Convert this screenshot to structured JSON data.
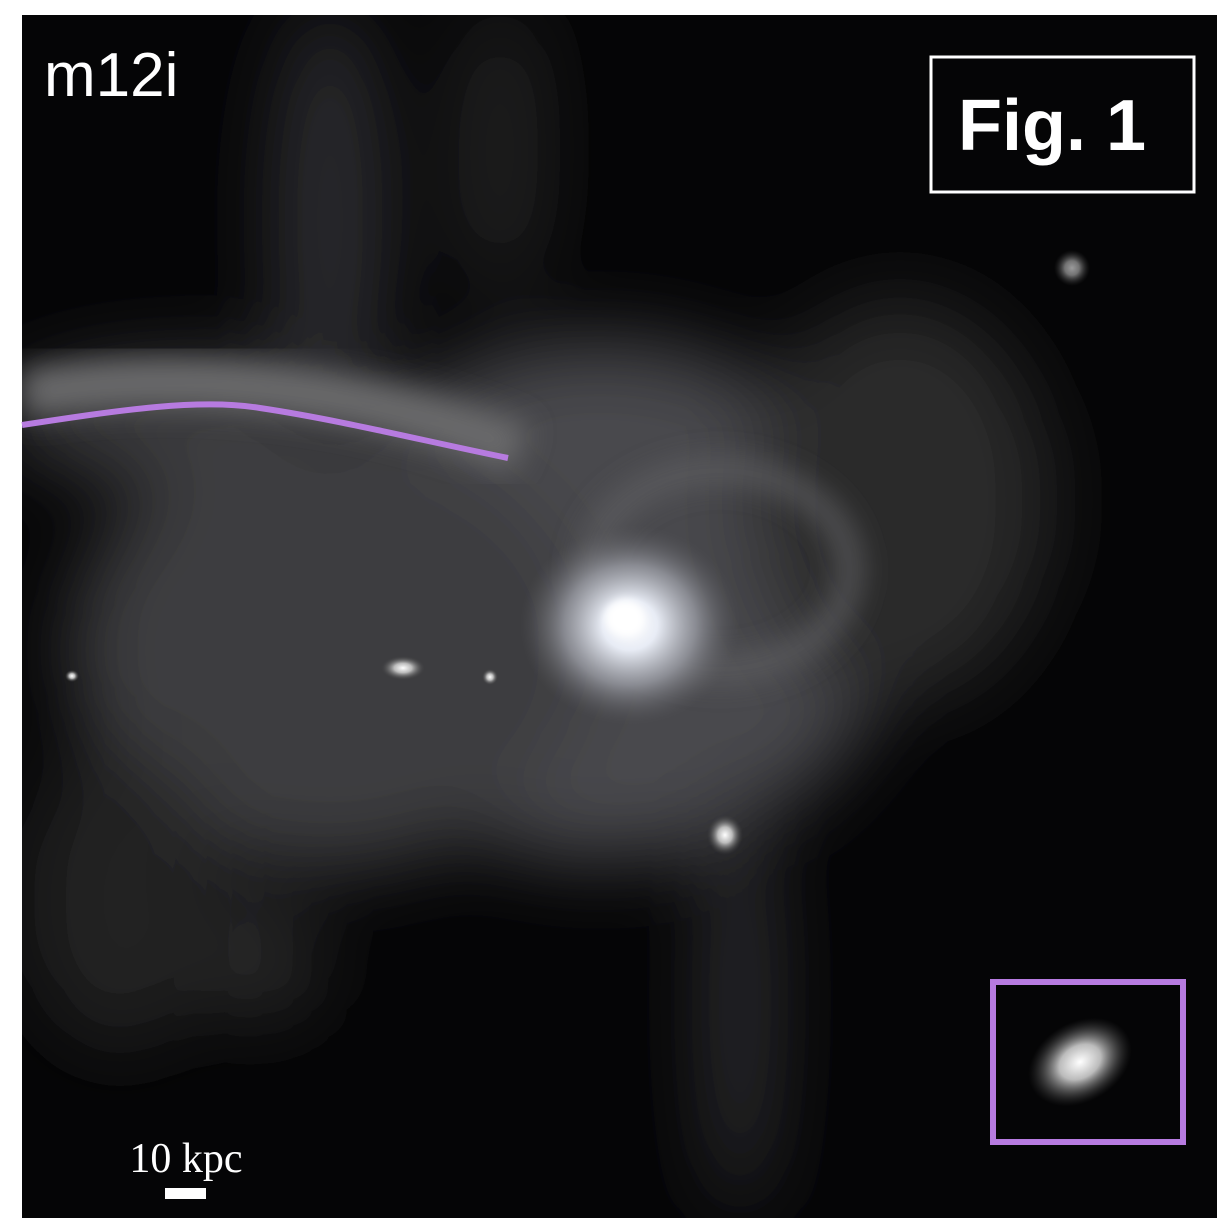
{
  "simulation_label": "m12i",
  "figure_label": "Fig. 1",
  "scale_bar": {
    "label": "10 kpc"
  }
}
